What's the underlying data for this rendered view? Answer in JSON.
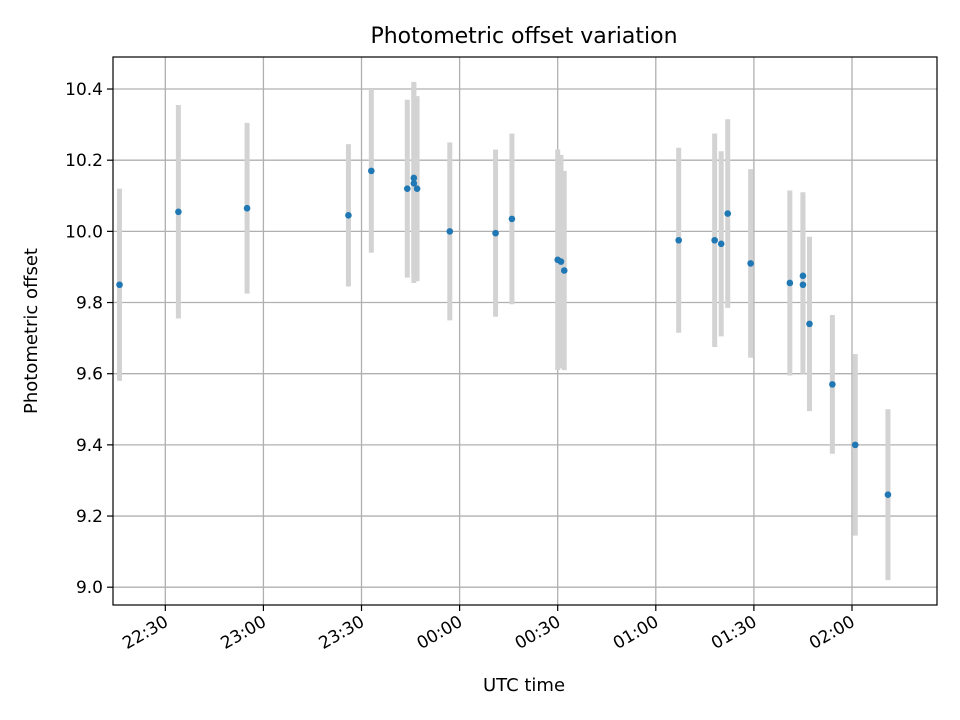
{
  "chart_data": {
    "type": "scatter",
    "title": "Photometric offset variation",
    "xlabel": "UTC time",
    "ylabel": "Photometric offset",
    "grid": true,
    "xlim": [
      "22:14",
      "02:26"
    ],
    "ylim": [
      8.95,
      10.49
    ],
    "xticks": [
      "22:30",
      "23:00",
      "23:30",
      "00:00",
      "00:30",
      "01:00",
      "01:30",
      "02:00"
    ],
    "yticks": [
      "9.0",
      "9.2",
      "9.4",
      "9.6",
      "9.8",
      "10.0",
      "10.2",
      "10.4"
    ],
    "marker_color": "#1f77b4",
    "errorbar_color": "#d3d3d3",
    "series": [
      {
        "points": [
          {
            "x": "22:16",
            "y": 9.85,
            "err": 0.27
          },
          {
            "x": "22:34",
            "y": 10.055,
            "err": 0.3
          },
          {
            "x": "22:55",
            "y": 10.065,
            "err": 0.24
          },
          {
            "x": "23:26",
            "y": 10.045,
            "err": 0.2
          },
          {
            "x": "23:33",
            "y": 10.17,
            "err": 0.23
          },
          {
            "x": "23:44",
            "y": 10.12,
            "err": 0.25
          },
          {
            "x": "23:46",
            "y": 10.15,
            "err": 0.27
          },
          {
            "x": "23:46",
            "y": 10.135,
            "err": 0.28
          },
          {
            "x": "23:47",
            "y": 10.12,
            "err": 0.26
          },
          {
            "x": "23:57",
            "y": 10.0,
            "err": 0.25
          },
          {
            "x": "00:11",
            "y": 9.995,
            "err": 0.235
          },
          {
            "x": "00:16",
            "y": 10.035,
            "err": 0.24
          },
          {
            "x": "00:30",
            "y": 9.92,
            "err": 0.31
          },
          {
            "x": "00:31",
            "y": 9.915,
            "err": 0.3
          },
          {
            "x": "00:32",
            "y": 9.89,
            "err": 0.28
          },
          {
            "x": "01:07",
            "y": 9.975,
            "err": 0.26
          },
          {
            "x": "01:18",
            "y": 9.975,
            "err": 0.3
          },
          {
            "x": "01:20",
            "y": 9.965,
            "err": 0.26
          },
          {
            "x": "01:22",
            "y": 10.05,
            "err": 0.265
          },
          {
            "x": "01:29",
            "y": 9.91,
            "err": 0.265
          },
          {
            "x": "01:41",
            "y": 9.855,
            "err": 0.26
          },
          {
            "x": "01:45",
            "y": 9.85,
            "err": 0.25
          },
          {
            "x": "01:45",
            "y": 9.875,
            "err": 0.235
          },
          {
            "x": "01:47",
            "y": 9.74,
            "err": 0.245
          },
          {
            "x": "01:54",
            "y": 9.57,
            "err": 0.195
          },
          {
            "x": "02:01",
            "y": 9.4,
            "err": 0.255
          },
          {
            "x": "02:11",
            "y": 9.26,
            "err": 0.24
          }
        ]
      }
    ]
  }
}
